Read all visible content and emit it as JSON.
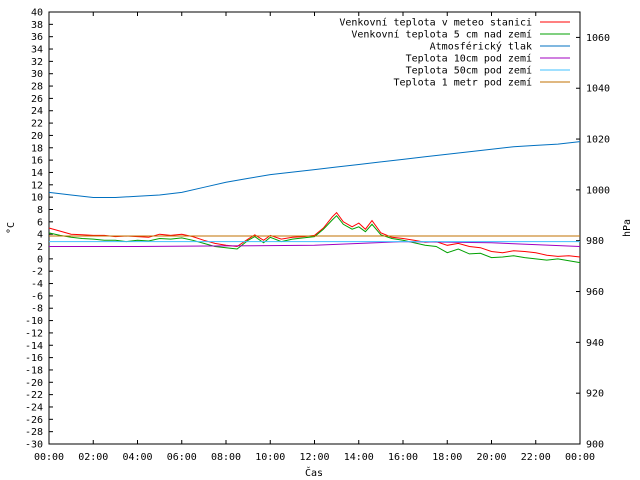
{
  "chart_data": {
    "type": "line",
    "title": "",
    "xlabel": "Čas",
    "ylabel": "°C",
    "y2label": "hPa",
    "xlim": [
      0,
      24
    ],
    "ylim": [
      -30,
      40
    ],
    "y2lim": [
      900,
      1070
    ],
    "x_ticks": [
      "00:00",
      "02:00",
      "04:00",
      "06:00",
      "08:00",
      "10:00",
      "12:00",
      "14:00",
      "16:00",
      "18:00",
      "20:00",
      "22:00",
      "00:00"
    ],
    "y_ticks": [
      "40",
      "38",
      "36",
      "34",
      "32",
      "30",
      "28",
      "26",
      "24",
      "22",
      "20",
      "18",
      "16",
      "14",
      "12",
      "10",
      "8",
      "6",
      "4",
      "2",
      "0",
      "-2",
      "-4",
      "-6",
      "-8",
      "-10",
      "-12",
      "-14",
      "-16",
      "-18",
      "-20",
      "-22",
      "-24",
      "-26",
      "-28",
      "-30"
    ],
    "y2_ticks": [
      "1060",
      "1040",
      "1020",
      "1000",
      "980",
      "960",
      "940",
      "920",
      "900"
    ],
    "grid": false,
    "legend_position": "top-right",
    "series": [
      {
        "name": "Venkovní teplota v meteo stanici",
        "color": "#ff0000",
        "axis": "left",
        "x": [
          0,
          0.5,
          1,
          1.5,
          2,
          2.5,
          3,
          3.5,
          4,
          4.5,
          5,
          5.5,
          6,
          6.5,
          7,
          7.5,
          8,
          8.5,
          9,
          9.3,
          9.7,
          10,
          10.5,
          11,
          11.5,
          12,
          12.4,
          12.8,
          13,
          13.3,
          13.7,
          14,
          14.3,
          14.6,
          15,
          15.5,
          16,
          16.5,
          17,
          17.5,
          18,
          18.5,
          19,
          19.5,
          20,
          20.5,
          21,
          21.5,
          22,
          22.5,
          23,
          23.5,
          24
        ],
        "values": [
          5.0,
          4.5,
          4.0,
          3.9,
          3.8,
          3.8,
          3.6,
          3.7,
          3.6,
          3.5,
          4.0,
          3.8,
          4.0,
          3.6,
          3.0,
          2.5,
          2.2,
          2.0,
          3.2,
          3.9,
          3.0,
          3.8,
          3.2,
          3.5,
          3.6,
          3.8,
          5.0,
          6.8,
          7.5,
          6.0,
          5.2,
          5.8,
          4.8,
          6.2,
          4.2,
          3.5,
          3.3,
          3.0,
          2.7,
          2.8,
          2.2,
          2.5,
          2.0,
          1.8,
          1.2,
          1.0,
          1.3,
          1.2,
          1.0,
          0.6,
          0.4,
          0.5,
          0.3
        ]
      },
      {
        "name": "Venkovní teplota 5 cm nad zemí",
        "color": "#00a000",
        "axis": "left",
        "x": [
          0,
          0.5,
          1,
          1.5,
          2,
          2.5,
          3,
          3.5,
          4,
          4.5,
          5,
          5.5,
          6,
          6.5,
          7,
          7.5,
          8,
          8.5,
          9,
          9.3,
          9.7,
          10,
          10.5,
          11,
          11.5,
          12,
          12.4,
          12.8,
          13,
          13.3,
          13.7,
          14,
          14.3,
          14.6,
          15,
          15.5,
          16,
          16.5,
          17,
          17.5,
          18,
          18.5,
          19,
          19.5,
          20,
          20.5,
          21,
          21.5,
          22,
          22.5,
          23,
          23.5,
          24
        ],
        "values": [
          4.2,
          3.8,
          3.5,
          3.3,
          3.2,
          3.0,
          3.0,
          2.8,
          3.0,
          2.9,
          3.3,
          3.2,
          3.4,
          3.0,
          2.5,
          2.0,
          1.8,
          1.6,
          3.0,
          3.6,
          2.6,
          3.5,
          2.8,
          3.2,
          3.4,
          3.6,
          4.8,
          6.3,
          7.0,
          5.6,
          4.8,
          5.2,
          4.4,
          5.6,
          3.9,
          3.3,
          3.0,
          2.6,
          2.2,
          2.0,
          1.0,
          1.6,
          0.8,
          0.9,
          0.2,
          0.3,
          0.5,
          0.2,
          0.0,
          -0.2,
          0.0,
          -0.3,
          -0.6
        ]
      },
      {
        "name": "Atmosférický tlak",
        "color": "#0070c0",
        "axis": "right",
        "x": [
          0,
          1,
          2,
          3,
          4,
          5,
          6,
          7,
          8,
          9,
          10,
          11,
          12,
          13,
          14,
          15,
          16,
          17,
          18,
          19,
          20,
          21,
          22,
          23,
          24
        ],
        "values": [
          999,
          998,
          997,
          997,
          997.5,
          998,
          999,
          1001,
          1003,
          1004.5,
          1006,
          1007,
          1008,
          1009,
          1010,
          1011,
          1012,
          1013,
          1014,
          1015,
          1016,
          1017,
          1017.5,
          1018,
          1019
        ]
      },
      {
        "name": "Teplota 10cm pod zemí",
        "color": "#a000c0",
        "axis": "left",
        "x": [
          0,
          4,
          8,
          12,
          16,
          20,
          24
        ],
        "values": [
          2.0,
          2.0,
          2.1,
          2.2,
          2.8,
          2.6,
          2.0
        ]
      },
      {
        "name": "Teplota 50cm pod zemí",
        "color": "#40c0ff",
        "axis": "left",
        "x": [
          0,
          6,
          12,
          18,
          24
        ],
        "values": [
          2.8,
          2.8,
          2.8,
          2.8,
          2.8
        ]
      },
      {
        "name": "Teplota 1 metr pod zemí",
        "color": "#c07000",
        "axis": "left",
        "x": [
          0,
          6,
          12,
          18,
          24
        ],
        "values": [
          3.7,
          3.7,
          3.7,
          3.7,
          3.7
        ]
      }
    ]
  }
}
